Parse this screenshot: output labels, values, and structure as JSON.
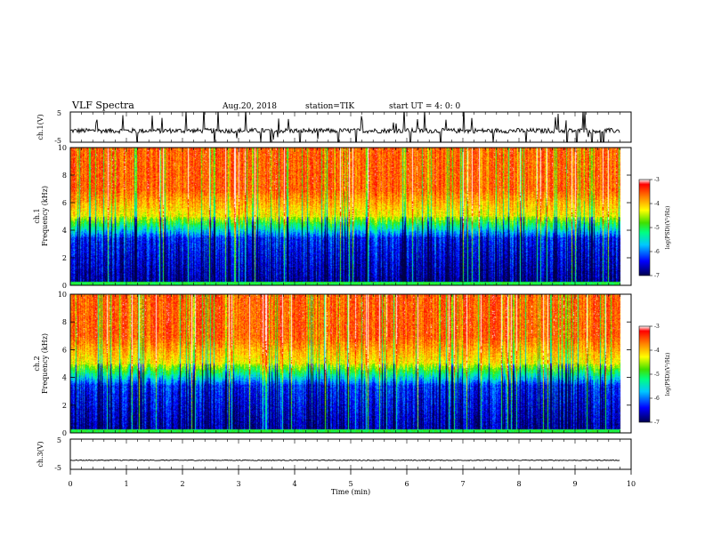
{
  "header": {
    "title": "VLF Spectra",
    "date": "Aug.20, 2018",
    "station": "station=TIK",
    "start_ut": "start UT =  4: 0: 0"
  },
  "chart_data": [
    {
      "type": "line",
      "ylabel": "ch.1(V)",
      "ylim": [
        -5,
        5
      ],
      "yticks": [
        "5",
        "-5"
      ],
      "xlim": [
        0,
        10
      ],
      "description_baseline_volts": -1.2
    },
    {
      "type": "heatmap",
      "ylabel_top": "ch.1",
      "ylabel": "Frequency (kHz)",
      "ylim": [
        0,
        10
      ],
      "yticks": [
        "0",
        "2",
        "4",
        "6",
        "8",
        "10"
      ],
      "xlim": [
        0,
        10
      ],
      "colorbar": {
        "label": "log(PSD)(V²/Hz)",
        "range": [
          -7,
          -3
        ],
        "ticks": [
          "-3",
          "-4",
          "-5",
          "-6",
          "-7"
        ]
      },
      "bands_khz": {
        "low_dark_top": 3.5,
        "transition_top": 5.0,
        "high_red_top": 10
      }
    },
    {
      "type": "heatmap",
      "ylabel_top": "ch.2",
      "ylabel": "Frequency (kHz)",
      "ylim": [
        0,
        10
      ],
      "yticks": [
        "0",
        "2",
        "4",
        "6",
        "8",
        "10"
      ],
      "xlim": [
        0,
        10
      ],
      "colorbar": {
        "label": "log(PSD)(V²/Hz)",
        "range": [
          -7,
          -3
        ],
        "ticks": [
          "-3",
          "-4",
          "-5",
          "-6",
          "-7"
        ]
      },
      "bands_khz": {
        "low_dark_top": 3.5,
        "transition_top": 5.0,
        "high_red_top": 10
      }
    },
    {
      "type": "line",
      "ylabel": "ch.3(V)",
      "ylim": [
        -5,
        5
      ],
      "yticks": [
        "5",
        "-5"
      ],
      "xlim": [
        0,
        10
      ],
      "xlabel": "Time (min)",
      "xticks": [
        "0",
        "1",
        "2",
        "3",
        "4",
        "5",
        "6",
        "7",
        "8",
        "9",
        "10"
      ],
      "description_baseline_volts": -2.0
    }
  ],
  "data_end_min": 9.82,
  "colors": {
    "low": "#000040",
    "mid": "#00c8ff",
    "green": "#40e040",
    "high": "#ff3000"
  }
}
